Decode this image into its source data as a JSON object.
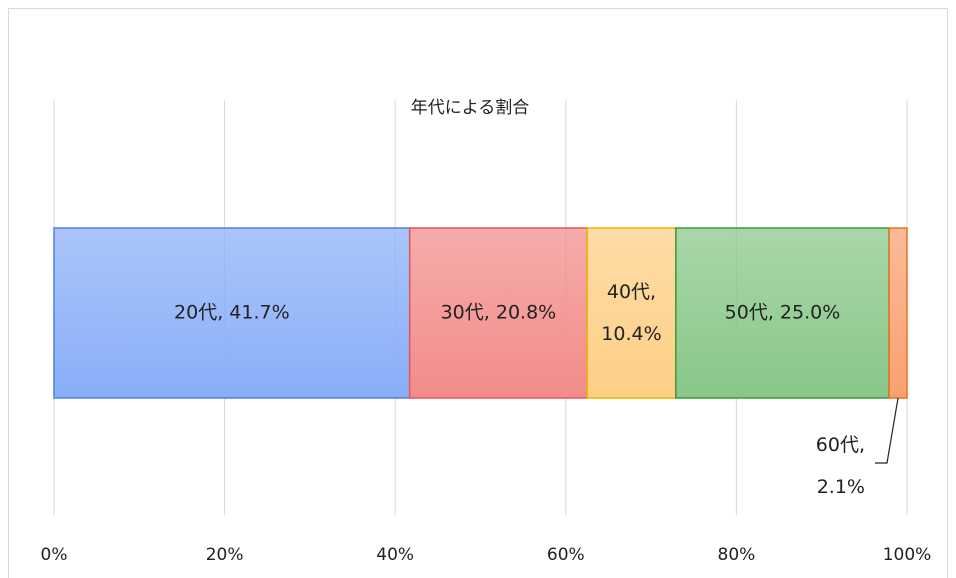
{
  "chart_data": {
    "type": "stacked-bar-horizontal",
    "title": "年代による割合",
    "series": [
      {
        "name": "20代",
        "color": "#89aef8",
        "stroke": "#4f7fe0",
        "values": [
          41.7
        ],
        "value_labels": [
          "20代, 41.7%"
        ]
      },
      {
        "name": "30代",
        "color": "#f28c8a",
        "stroke": "#de5a58",
        "values": [
          20.8
        ],
        "value_labels": [
          "30代, 20.8%"
        ]
      },
      {
        "name": "40代",
        "color": "#fecf85",
        "stroke": "#f0b400",
        "values": [
          10.4
        ],
        "value_labels": [
          "40代, 10.4%"
        ]
      },
      {
        "name": "50代",
        "color": "#88c788",
        "stroke": "#3c9a3c",
        "values": [
          25.0
        ],
        "value_labels": [
          "50代, 25.0%"
        ]
      },
      {
        "name": "60代",
        "color": "#f9a070",
        "stroke": "#e57424",
        "values": [
          2.1
        ],
        "value_labels": [
          "60代, 2.1%"
        ]
      }
    ],
    "xlim": [
      0,
      100
    ],
    "xticks": [
      {
        "value": 0,
        "label": "0%"
      },
      {
        "value": 20,
        "label": "20%"
      },
      {
        "value": 40,
        "label": "40%"
      },
      {
        "value": 60,
        "label": "60%"
      },
      {
        "value": 80,
        "label": "80%"
      },
      {
        "value": 100,
        "label": "100%"
      }
    ],
    "grid": true
  }
}
